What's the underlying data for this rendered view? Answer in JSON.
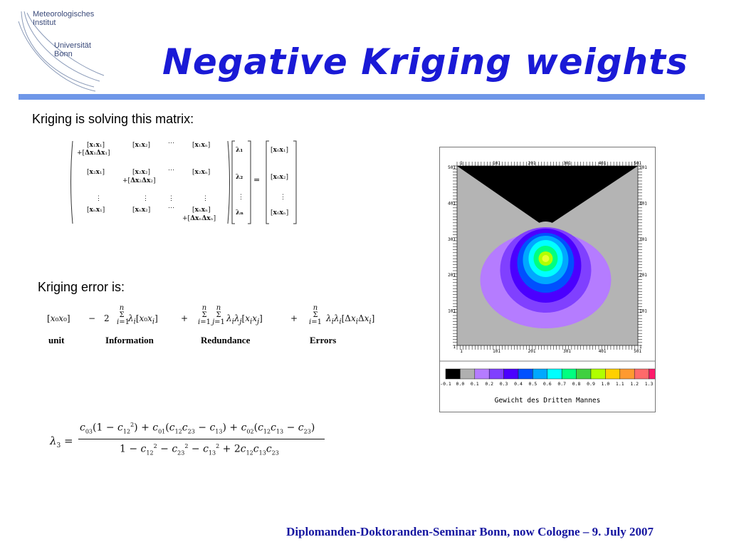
{
  "logo": {
    "line1": "Meteorologisches",
    "line2": "Institut",
    "line3": "Universität",
    "line4": "Bonn"
  },
  "title": "Negative Kriging weights",
  "matrix_label": "Kriging is solving this matrix:",
  "error_label": "Kriging error is:",
  "error_terms": {
    "unit": "unit",
    "information": "Information",
    "redundance": "Redundance",
    "errors": "Errors"
  },
  "plot": {
    "top_ticks": [
      "1",
      "101",
      "201",
      "301",
      "401",
      "501"
    ],
    "bottom_ticks": [
      "1",
      "101",
      "201",
      "301",
      "401",
      "501"
    ],
    "left_ticks": [
      "501",
      "401",
      "301",
      "201",
      "101",
      "1"
    ],
    "right_ticks": [
      "501",
      "401",
      "301",
      "201",
      "101",
      "1"
    ],
    "colorbar_values": [
      "-0.1",
      "0.0",
      "0.1",
      "0.2",
      "0.3",
      "0.4",
      "0.5",
      "0.6",
      "0.7",
      "0.8",
      "0.9",
      "1.0",
      "1.1",
      "1.2",
      "1.3"
    ],
    "colorbar_colors": [
      "#000000",
      "#b0b0b0",
      "#b57cff",
      "#8040ff",
      "#4b00ff",
      "#0050ff",
      "#00a8ff",
      "#00ffff",
      "#00ff80",
      "#40d040",
      "#b0ff00",
      "#ffd000",
      "#ff9a30",
      "#ff6a6a",
      "#ff1a6a"
    ],
    "caption": "Gewicht des Dritten Mannes"
  },
  "footer": "Diplomanden-Doktoranden-Seminar Bonn, now Cologne – 9. July 2007"
}
